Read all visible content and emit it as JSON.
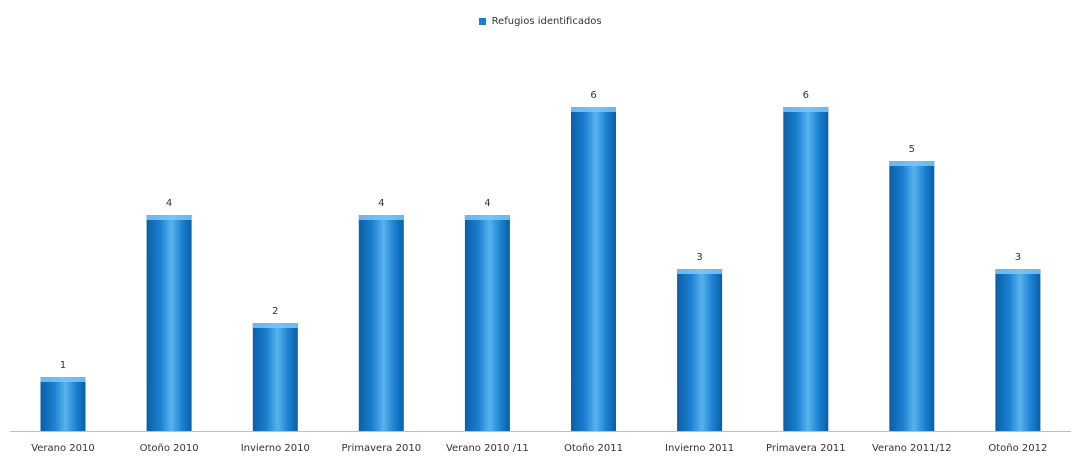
{
  "chart_data": {
    "type": "bar",
    "categories": [
      "Verano 2010",
      "Otoño 2010",
      "Invierno 2010",
      "Primavera 2010",
      "Verano 2010 /11",
      "Otoño 2011",
      "Invierno 2011",
      "Primavera 2011",
      "Verano 2011/12",
      "Otoño 2012"
    ],
    "series": [
      {
        "name": "Refugios identificados",
        "values": [
          1,
          4,
          2,
          4,
          4,
          6,
          3,
          6,
          5,
          3
        ]
      }
    ],
    "title": "",
    "xlabel": "",
    "ylabel": "",
    "ylim": [
      0,
      6
    ],
    "grid": false,
    "legend_position": "top-center",
    "data_labels": true
  },
  "colors": {
    "bar_dark": "#0a5fa6",
    "bar_mid": "#1a7fd0",
    "bar_light": "#58b3ee",
    "bar_cap": "#7fc7f5",
    "axis": "#bfbfbf",
    "text": "#333333"
  }
}
